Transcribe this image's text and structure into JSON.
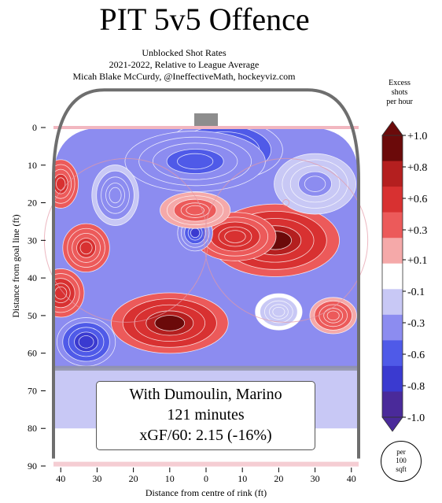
{
  "title": "PIT 5v5 Offence",
  "subtitle_lines": [
    "Unblocked Shot Rates",
    "2021-2022, Relative to League Average",
    "Micah Blake McCurdy, @IneffectiveMath, hockeyviz.com"
  ],
  "info_box": {
    "line1": "With Dumoulin, Marino",
    "line2": "121 minutes",
    "line3": "xGF/60: 2.15 (-16%)"
  },
  "legend": {
    "title_lines": [
      "Excess",
      "shots",
      "per hour"
    ],
    "unit_lines": [
      "per",
      "100",
      "sqft"
    ]
  },
  "chart_data": {
    "type": "heatmap",
    "title": "PIT 5v5 Offence",
    "xlabel": "Distance from centre of rink (ft)",
    "ylabel": "Distance from goal line (ft)",
    "x_ticks": [
      "40",
      "30",
      "20",
      "10",
      "0",
      "10",
      "20",
      "30",
      "40"
    ],
    "y_ticks": [
      "0",
      "10",
      "20",
      "30",
      "40",
      "50",
      "60",
      "70",
      "80",
      "90"
    ],
    "xlim": [
      -42,
      42
    ],
    "ylim": [
      0,
      90
    ],
    "colorbar": {
      "min": -1.0,
      "max": 1.0,
      "tick_labels": [
        "+1.0",
        "+0.8",
        "+0.6",
        "+0.3",
        "+0.1",
        "-0.1",
        "-0.3",
        "-0.6",
        "-0.8",
        "-1.0"
      ],
      "tick_values": [
        1.0,
        0.8,
        0.6,
        0.3,
        0.1,
        -0.1,
        -0.3,
        -0.6,
        -0.8,
        -1.0
      ],
      "colors": [
        "#6b0a0a",
        "#b41f1f",
        "#d83131",
        "#ec5a5a",
        "#f5a9a9",
        "#ffffff",
        "#c8c8f5",
        "#8c8cf0",
        "#4f5ae8",
        "#3a3ad0",
        "#4a2a9a"
      ]
    },
    "regions": [
      {
        "x": 5,
        "y": 6,
        "sx": 10,
        "sy": 5,
        "value": -1.0
      },
      {
        "x": -3,
        "y": 9,
        "sx": 12,
        "sy": 5,
        "value": -0.6
      },
      {
        "x": 19,
        "y": 30,
        "sx": 11,
        "sy": 6,
        "value": 1.0
      },
      {
        "x": 8,
        "y": 29,
        "sx": 7,
        "sy": 4,
        "value": 0.7
      },
      {
        "x": -10,
        "y": 52,
        "sx": 10,
        "sy": 5,
        "value": 1.0
      },
      {
        "x": -3,
        "y": 28,
        "sx": 3,
        "sy": 3,
        "value": -0.8
      },
      {
        "x": -33,
        "y": 57,
        "sx": 5,
        "sy": 4,
        "value": -0.9
      },
      {
        "x": -33,
        "y": 32,
        "sx": 4,
        "sy": 4,
        "value": 0.6
      },
      {
        "x": -40,
        "y": 44,
        "sx": 4,
        "sy": 4,
        "value": 0.7
      },
      {
        "x": -40,
        "y": 15,
        "sx": 3,
        "sy": 4,
        "value": 0.6
      },
      {
        "x": -3,
        "y": 22,
        "sx": 6,
        "sy": 3,
        "value": 0.35
      },
      {
        "x": 35,
        "y": 50,
        "sx": 4,
        "sy": 3,
        "value": 0.4
      },
      {
        "x": 20,
        "y": 49,
        "sx": 4,
        "sy": 3,
        "value": -0.2
      },
      {
        "x": -25,
        "y": 18,
        "sx": 4,
        "sy": 5,
        "value": -0.4
      },
      {
        "x": 30,
        "y": 15,
        "sx": 7,
        "sy": 5,
        "value": -0.3
      }
    ],
    "background_value": -0.2
  }
}
